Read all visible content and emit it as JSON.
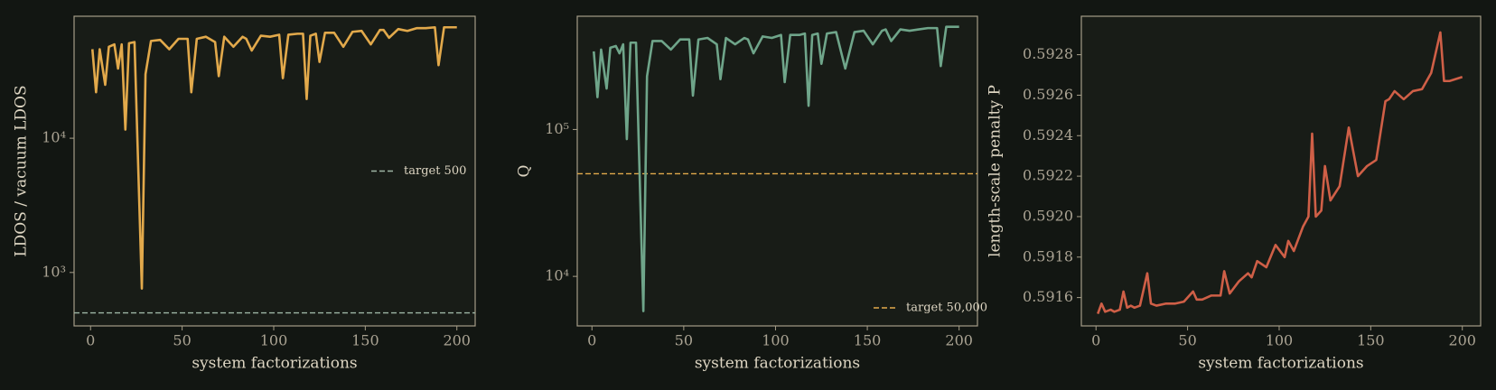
{
  "chart_data": [
    {
      "type": "line",
      "xlabel": "system factorizations",
      "ylabel": "LDOS / vacuum LDOS",
      "yscale": "log",
      "xlim": [
        -9,
        210
      ],
      "xticks": [
        0,
        50,
        100,
        150,
        200
      ],
      "ylim": [
        400,
        81000
      ],
      "yticks": [
        {
          "value": 1000,
          "label": "10³"
        },
        {
          "value": 10000,
          "label": "10⁴"
        }
      ],
      "x": [
        1,
        3,
        5,
        8,
        10,
        13,
        15,
        17,
        19,
        21,
        24,
        28,
        30,
        33,
        38,
        43,
        48,
        53,
        55,
        58,
        63,
        68,
        70,
        73,
        78,
        83,
        85,
        88,
        93,
        98,
        103,
        105,
        108,
        113,
        116,
        118,
        120,
        123,
        125,
        128,
        133,
        138,
        143,
        148,
        153,
        158,
        160,
        163,
        168,
        173,
        178,
        183,
        188,
        190,
        193,
        200
      ],
      "series": [
        {
          "color": "#e2a94b",
          "values": [
            46000,
            22000,
            46000,
            25000,
            48000,
            50000,
            33000,
            50000,
            11600,
            51000,
            52000,
            760,
            30000,
            53000,
            54000,
            46000,
            55000,
            55000,
            22000,
            55000,
            57000,
            52000,
            29000,
            57000,
            48000,
            57000,
            55000,
            45000,
            58000,
            57000,
            59000,
            28000,
            59000,
            60000,
            60000,
            19600,
            58000,
            60000,
            37000,
            61000,
            61000,
            48000,
            62000,
            63000,
            50000,
            64000,
            64000,
            56000,
            65000,
            63000,
            66000,
            66000,
            67000,
            35000,
            67000,
            67000
          ]
        }
      ],
      "hlines": [
        {
          "value": 500,
          "label": "target 500",
          "color": "#9db5a5"
        }
      ],
      "legend": "center right"
    },
    {
      "type": "line",
      "xlabel": "system factorizations",
      "ylabel": "Q",
      "yscale": "log",
      "xlim": [
        -8,
        210
      ],
      "xticks": [
        0,
        50,
        100,
        150,
        200
      ],
      "ylim": [
        4600,
        590000
      ],
      "yticks": [
        {
          "value": 10000,
          "label": "10⁴"
        },
        {
          "value": 100000,
          "label": "10⁵"
        }
      ],
      "x": [
        1,
        3,
        5,
        8,
        10,
        13,
        15,
        17,
        19,
        21,
        24,
        28,
        30,
        33,
        38,
        43,
        48,
        53,
        55,
        58,
        63,
        68,
        70,
        73,
        78,
        83,
        85,
        88,
        93,
        98,
        103,
        105,
        108,
        113,
        116,
        118,
        120,
        123,
        125,
        128,
        133,
        138,
        143,
        148,
        153,
        158,
        160,
        163,
        168,
        173,
        178,
        183,
        188,
        190,
        193,
        200
      ],
      "series": [
        {
          "color": "#6fa58a",
          "values": [
            340000,
            166000,
            350000,
            190000,
            360000,
            370000,
            330000,
            380000,
            86000,
            390000,
            390000,
            5800,
            230000,
            400000,
            400000,
            350000,
            410000,
            410000,
            170000,
            410000,
            420000,
            380000,
            220000,
            420000,
            380000,
            420000,
            410000,
            330000,
            430000,
            420000,
            440000,
            210000,
            440000,
            440000,
            450000,
            145000,
            440000,
            450000,
            280000,
            450000,
            460000,
            260000,
            460000,
            470000,
            380000,
            470000,
            480000,
            400000,
            480000,
            470000,
            480000,
            490000,
            490000,
            270000,
            500000,
            500000
          ]
        }
      ],
      "hlines": [
        {
          "value": 50000,
          "label": "target 50,000",
          "color": "#e2a94b"
        }
      ],
      "legend": "lower right"
    },
    {
      "type": "line",
      "xlabel": "system factorizations",
      "ylabel": "length-scale penalty P",
      "yscale": "linear",
      "xlim": [
        -8,
        210
      ],
      "xticks": [
        0,
        50,
        100,
        150,
        200
      ],
      "ylim": [
        0.59146,
        0.59299
      ],
      "yticks": [
        0.5916,
        0.5918,
        {
          "value": 0.592,
          "label": "0.5920"
        },
        0.5922,
        0.5924,
        0.5926,
        0.5928
      ],
      "x": [
        1,
        3,
        5,
        8,
        10,
        13,
        15,
        17,
        19,
        21,
        24,
        28,
        30,
        33,
        38,
        43,
        48,
        53,
        55,
        58,
        63,
        68,
        70,
        73,
        78,
        83,
        85,
        88,
        93,
        98,
        103,
        105,
        108,
        113,
        116,
        118,
        120,
        123,
        125,
        128,
        133,
        138,
        143,
        148,
        153,
        158,
        160,
        163,
        168,
        173,
        178,
        183,
        188,
        190,
        193,
        200
      ],
      "series": [
        {
          "color": "#cf5f47",
          "values": [
            0.59152,
            0.59157,
            0.59153,
            0.59154,
            0.59153,
            0.59154,
            0.59163,
            0.59155,
            0.59156,
            0.59155,
            0.59156,
            0.59172,
            0.59157,
            0.59156,
            0.59157,
            0.59157,
            0.59158,
            0.59163,
            0.59159,
            0.59159,
            0.59161,
            0.59161,
            0.59173,
            0.59162,
            0.59168,
            0.59172,
            0.5917,
            0.59178,
            0.59175,
            0.59186,
            0.5918,
            0.59188,
            0.59183,
            0.59195,
            0.592,
            0.59241,
            0.592,
            0.59203,
            0.59225,
            0.59208,
            0.59215,
            0.59244,
            0.5922,
            0.59225,
            0.59228,
            0.59257,
            0.59258,
            0.59262,
            0.59258,
            0.59262,
            0.59263,
            0.59271,
            0.59291,
            0.59267,
            0.59267,
            0.59269
          ]
        }
      ]
    }
  ]
}
